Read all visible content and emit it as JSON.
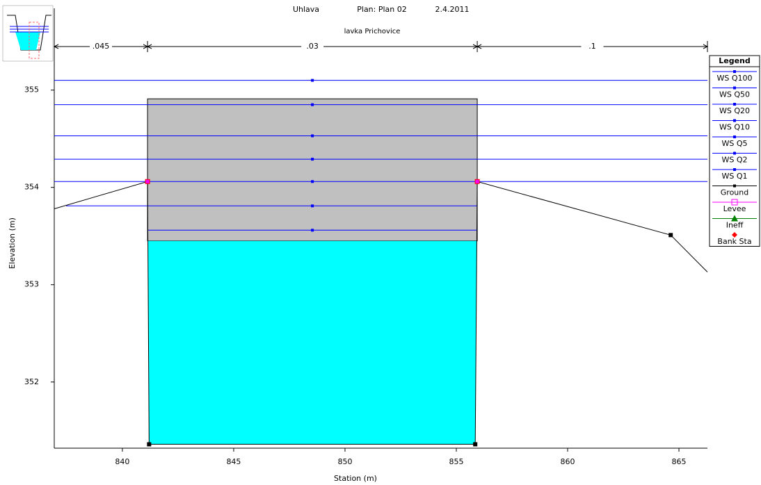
{
  "chart_data": {
    "type": "cross-section",
    "title_parts": [
      "Uhlava",
      "Plan: Plan 02",
      "2.4.2011"
    ],
    "subtitle": "lavka Prichovice",
    "x_label": "Station (m)",
    "y_label": "Elevation (m)",
    "xlim": [
      836.94,
      866.28
    ],
    "xticks": [
      840,
      845,
      850,
      855,
      860,
      865
    ],
    "ylim": [
      351.32,
      355.84
    ],
    "yticks": [
      352,
      353,
      354,
      355
    ],
    "manning_n": {
      "labels": [
        ".045",
        ".03",
        ".1"
      ],
      "breaks": [
        836.94,
        841.13,
        855.94,
        866.28
      ]
    },
    "legend_title": "Legend",
    "water_surfaces": [
      {
        "name": "WS Q100",
        "color": "#0000ff",
        "value": 355.1,
        "x": [
          836.94,
          866.28
        ]
      },
      {
        "name": "WS Q50",
        "color": "#0000ff",
        "value": 354.85,
        "x": [
          836.94,
          866.28
        ]
      },
      {
        "name": "WS Q20",
        "color": "#0000ff",
        "value": 354.53,
        "x": [
          836.94,
          866.28
        ]
      },
      {
        "name": "WS Q10",
        "color": "#0000ff",
        "value": 354.29,
        "x": [
          836.94,
          866.28
        ]
      },
      {
        "name": "WS Q5",
        "color": "#0000ff",
        "value": 354.06,
        "x": [
          836.94,
          866.28
        ]
      },
      {
        "name": "WS Q2",
        "color": "#0000ff",
        "value": 353.81,
        "x": [
          837.47,
          855.94
        ]
      },
      {
        "name": "WS Q1",
        "color": "#0000ff",
        "value": 353.56,
        "x": [
          841.13,
          855.94
        ]
      }
    ],
    "ground": {
      "name": "Ground",
      "color": "#000000",
      "x": [
        836.94,
        841.13,
        841.2,
        855.85,
        855.94,
        864.63,
        866.28
      ],
      "y": [
        353.78,
        354.06,
        351.36,
        351.36,
        354.06,
        353.51,
        353.13
      ]
    },
    "levee": {
      "name": "Levee",
      "color": "#ff00ff"
    },
    "ineff": {
      "name": "Ineff",
      "color": "#008000"
    },
    "bank_sta": {
      "name": "Bank Sta",
      "color": "#ff0000",
      "x": [
        841.13,
        855.94
      ],
      "y": [
        354.06,
        354.06
      ]
    },
    "bridge_deck": {
      "x": [
        841.13,
        855.94
      ],
      "high_chord": 354.91,
      "low_chord": 353.45,
      "color": "#c0c0c0"
    },
    "water_fill_color": "#00ffff"
  }
}
